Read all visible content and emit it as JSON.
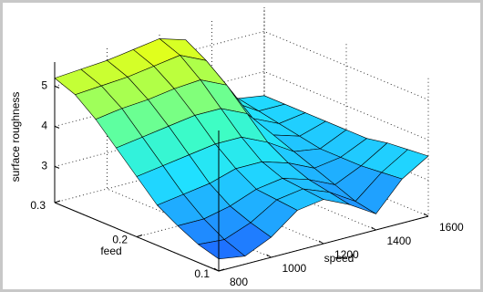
{
  "chart_data": {
    "type": "surface",
    "xlabel": "speed",
    "ylabel": "feed",
    "zlabel": "surface roughness",
    "x": [
      800,
      900,
      1000,
      1100,
      1200,
      1300,
      1400,
      1500,
      1600
    ],
    "y": [
      0.1,
      0.125,
      0.15,
      0.175,
      0.2,
      0.225,
      0.25,
      0.275,
      0.3
    ],
    "z": [
      [
        2.4,
        2.3,
        2.6,
        3.1,
        3.2,
        2.9,
        2.5,
        3.2,
        3.6
      ],
      [
        2.55,
        2.5,
        2.75,
        3.15,
        3.25,
        3.0,
        2.6,
        3.15,
        3.55
      ],
      [
        2.8,
        2.8,
        2.95,
        3.2,
        3.3,
        3.1,
        2.8,
        3.1,
        3.5
      ],
      [
        3.1,
        3.2,
        3.3,
        3.5,
        3.5,
        3.3,
        3.0,
        3.1,
        3.4
      ],
      [
        3.6,
        3.7,
        3.8,
        3.9,
        3.9,
        3.6,
        3.2,
        3.1,
        3.4
      ],
      [
        4.1,
        4.2,
        4.3,
        4.4,
        4.4,
        4.1,
        3.4,
        3.2,
        3.4
      ],
      [
        4.6,
        4.7,
        4.75,
        4.85,
        4.9,
        4.6,
        3.6,
        3.3,
        3.4
      ],
      [
        5.0,
        5.05,
        5.1,
        5.2,
        5.3,
        5.0,
        3.8,
        3.4,
        3.4
      ],
      [
        5.2,
        5.25,
        5.3,
        5.4,
        5.5,
        5.3,
        4.0,
        3.5,
        3.4
      ]
    ],
    "xlim": [
      800,
      1600
    ],
    "xticks": [
      800,
      1000,
      1200,
      1400,
      1600
    ],
    "ylim": [
      0.1,
      0.3
    ],
    "yticks": [
      0.1,
      0.2,
      0.3
    ],
    "zlim": [
      2.1,
      5.6
    ],
    "zticks": [
      3,
      4,
      5
    ],
    "grid": true,
    "colormap": [
      "#1e4cff",
      "#1f9bff",
      "#20e0ff",
      "#40ffc0",
      "#a8ff50",
      "#ffff00"
    ],
    "edge_color": "#000000"
  }
}
